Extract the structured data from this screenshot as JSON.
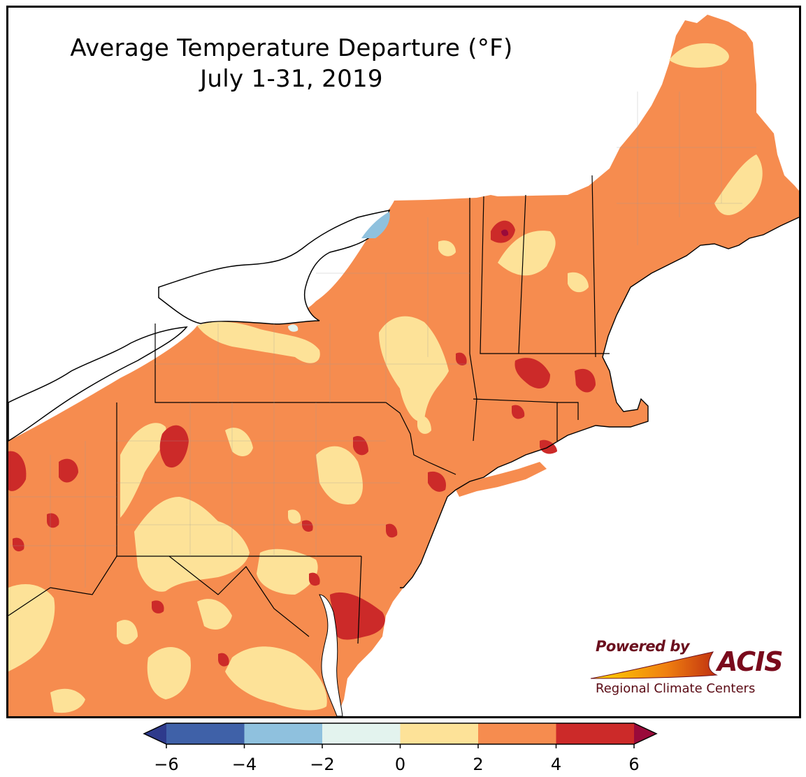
{
  "title": {
    "line1": "Average Temperature Departure (°F)",
    "line2": "July 1-31, 2019"
  },
  "map": {
    "region": "Northeast United States",
    "variable": "temperature departure",
    "units": "°F"
  },
  "legend": {
    "ticks": [
      "−6",
      "−4",
      "−2",
      "0",
      "2",
      "4",
      "6"
    ],
    "bins": [
      {
        "range": [
          -6,
          -4
        ],
        "color": "#3f61a8"
      },
      {
        "range": [
          -4,
          -2
        ],
        "color": "#8fc1de"
      },
      {
        "range": [
          -2,
          0
        ],
        "color": "#e3f3ee"
      },
      {
        "range": [
          0,
          2
        ],
        "color": "#fde298"
      },
      {
        "range": [
          2,
          4
        ],
        "color": "#f68c4f"
      },
      {
        "range": [
          4,
          6
        ],
        "color": "#cc2a29"
      }
    ],
    "under_color": "#2e3a8c",
    "over_color": "#9a0a3a"
  },
  "logo": {
    "powered_by": "Powered by",
    "brand": "ACIS",
    "org": "Regional Climate Centers"
  }
}
